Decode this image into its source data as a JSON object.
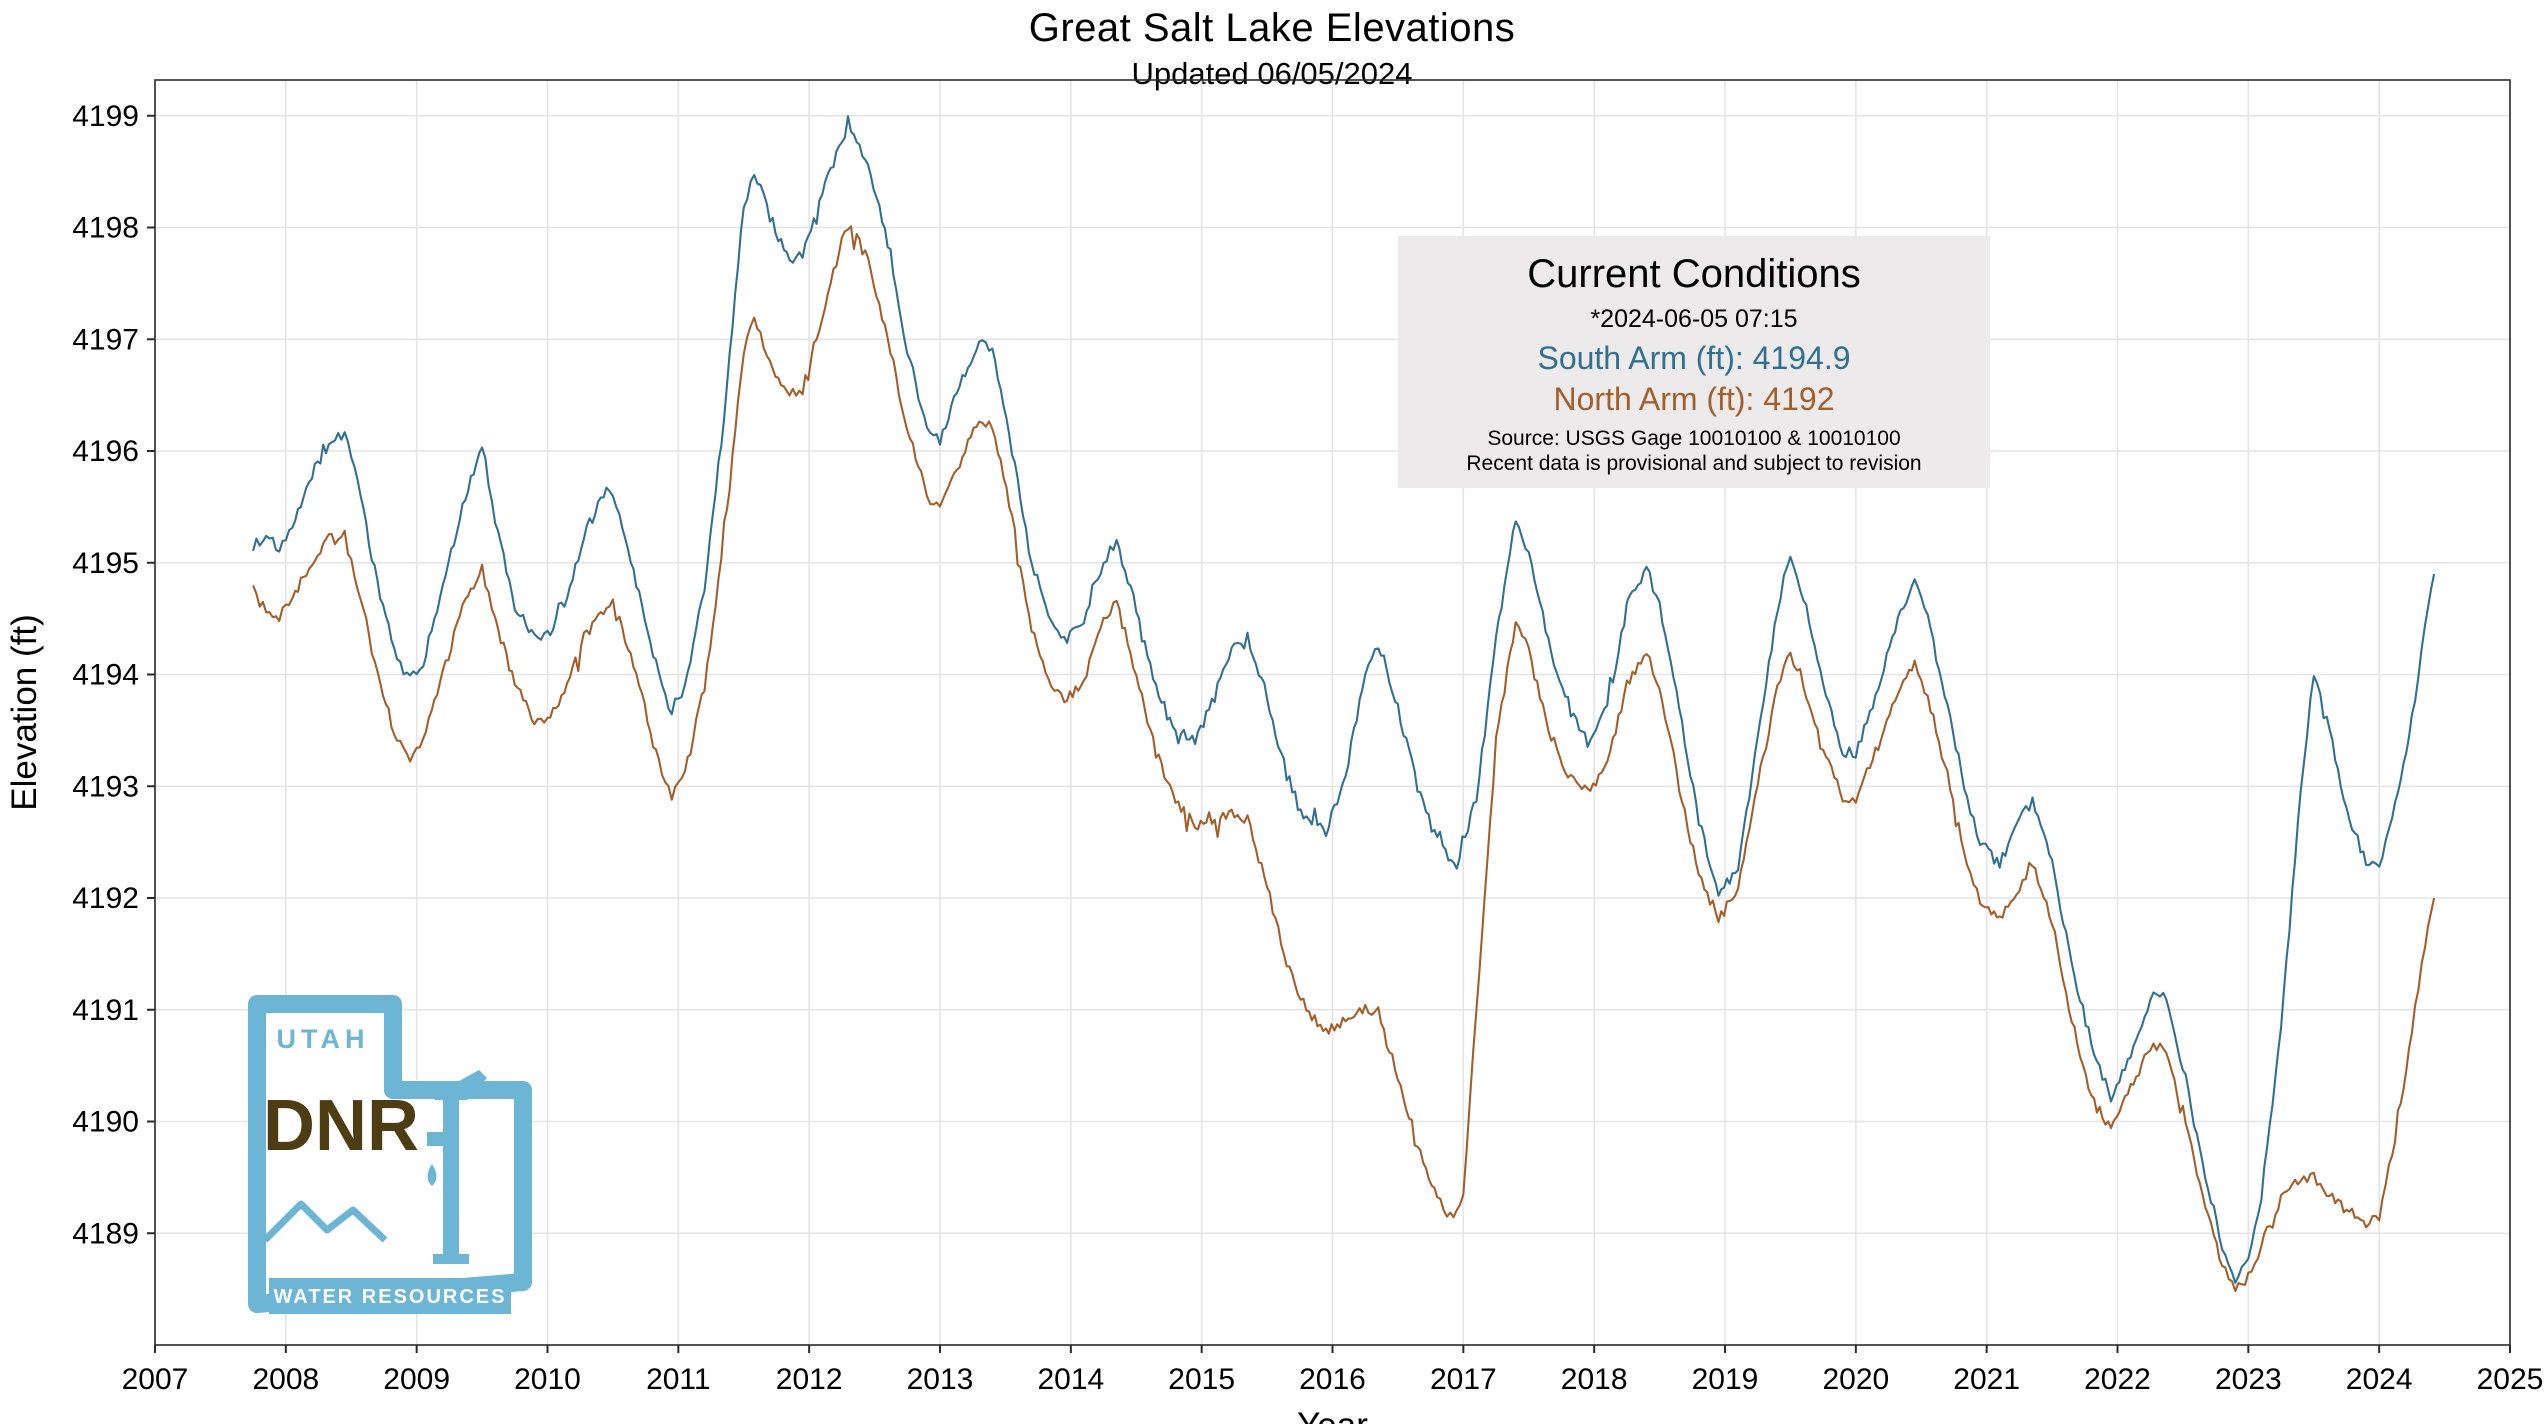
{
  "page": {
    "title": "Great Salt Lake Elevations",
    "subtitle": "Updated 06/05/2024"
  },
  "current_conditions": {
    "title": "Current Conditions",
    "timestamp": "*2024-06-05 07:15",
    "south_arm": "South Arm (ft): 4194.9",
    "north_arm": "North Arm (ft): 4192",
    "source": "Source: USGS Gage 10010100 & 10010100",
    "disclaimer": "Recent data is provisional and subject to revision"
  },
  "logo": {
    "state": "UTAH",
    "agency": "DNR",
    "division": "WATER RESOURCES",
    "accent_color": "#6cb5d5",
    "agency_color": "#4e3d12"
  },
  "chart_data": {
    "type": "line",
    "title": "Great Salt Lake Elevations",
    "subtitle": "Updated 06/05/2024",
    "xlabel": "Year",
    "ylabel": "Elevation (ft)",
    "xlim": [
      2007,
      2025
    ],
    "ylim": [
      4188.0,
      4199.32
    ],
    "x_ticks": [
      2007,
      2008,
      2009,
      2010,
      2011,
      2012,
      2013,
      2014,
      2015,
      2016,
      2017,
      2018,
      2019,
      2020,
      2021,
      2022,
      2023,
      2024,
      2025
    ],
    "y_ticks": [
      4189,
      4190,
      4191,
      4192,
      4193,
      4194,
      4195,
      4196,
      4197,
      4198,
      4199
    ],
    "grid": true,
    "legend_position": "none",
    "series": [
      {
        "name": "South Arm",
        "color": "#31708f",
        "points": [
          [
            2007.75,
            4195.15
          ],
          [
            2007.85,
            4195.25
          ],
          [
            2007.95,
            4195.1
          ],
          [
            2008.05,
            4195.3
          ],
          [
            2008.2,
            4195.8
          ],
          [
            2008.35,
            4196.1
          ],
          [
            2008.45,
            4196.15
          ],
          [
            2008.55,
            4195.7
          ],
          [
            2008.7,
            4194.8
          ],
          [
            2008.85,
            4194.15
          ],
          [
            2008.95,
            4193.95
          ],
          [
            2009.05,
            4194.1
          ],
          [
            2009.2,
            4194.8
          ],
          [
            2009.35,
            4195.5
          ],
          [
            2009.5,
            4196.05
          ],
          [
            2009.6,
            4195.4
          ],
          [
            2009.75,
            4194.6
          ],
          [
            2009.9,
            4194.35
          ],
          [
            2010.0,
            4194.35
          ],
          [
            2010.15,
            4194.7
          ],
          [
            2010.3,
            4195.3
          ],
          [
            2010.45,
            4195.65
          ],
          [
            2010.55,
            4195.45
          ],
          [
            2010.7,
            4194.7
          ],
          [
            2010.85,
            4194.0
          ],
          [
            2010.95,
            4193.65
          ],
          [
            2011.05,
            4193.9
          ],
          [
            2011.2,
            4194.8
          ],
          [
            2011.35,
            4196.3
          ],
          [
            2011.5,
            4198.2
          ],
          [
            2011.58,
            4198.5
          ],
          [
            2011.7,
            4198.1
          ],
          [
            2011.85,
            4197.7
          ],
          [
            2011.95,
            4197.75
          ],
          [
            2012.1,
            4198.3
          ],
          [
            2012.25,
            4198.8
          ],
          [
            2012.32,
            4198.85
          ],
          [
            2012.45,
            4198.55
          ],
          [
            2012.6,
            4197.9
          ],
          [
            2012.75,
            4196.9
          ],
          [
            2012.9,
            4196.2
          ],
          [
            2013.0,
            4196.1
          ],
          [
            2013.15,
            4196.6
          ],
          [
            2013.3,
            4197.0
          ],
          [
            2013.4,
            4196.9
          ],
          [
            2013.55,
            4196.0
          ],
          [
            2013.7,
            4195.0
          ],
          [
            2013.85,
            4194.5
          ],
          [
            2013.95,
            4194.3
          ],
          [
            2014.1,
            4194.5
          ],
          [
            2014.25,
            4195.0
          ],
          [
            2014.35,
            4195.2
          ],
          [
            2014.5,
            4194.6
          ],
          [
            2014.65,
            4193.9
          ],
          [
            2014.8,
            4193.5
          ],
          [
            2014.95,
            4193.4
          ],
          [
            2015.1,
            4193.8
          ],
          [
            2015.25,
            4194.3
          ],
          [
            2015.35,
            4194.35
          ],
          [
            2015.5,
            4193.8
          ],
          [
            2015.65,
            4193.1
          ],
          [
            2015.8,
            4192.7
          ],
          [
            2015.95,
            4192.6
          ],
          [
            2016.1,
            4193.1
          ],
          [
            2016.25,
            4194.0
          ],
          [
            2016.35,
            4194.25
          ],
          [
            2016.5,
            4193.7
          ],
          [
            2016.65,
            4193.0
          ],
          [
            2016.8,
            4192.5
          ],
          [
            2016.95,
            4192.3
          ],
          [
            2017.1,
            4192.9
          ],
          [
            2017.25,
            4194.3
          ],
          [
            2017.4,
            4195.4
          ],
          [
            2017.5,
            4195.1
          ],
          [
            2017.65,
            4194.3
          ],
          [
            2017.8,
            4193.7
          ],
          [
            2017.95,
            4193.4
          ],
          [
            2018.1,
            4193.7
          ],
          [
            2018.25,
            4194.6
          ],
          [
            2018.4,
            4195.0
          ],
          [
            2018.5,
            4194.6
          ],
          [
            2018.65,
            4193.7
          ],
          [
            2018.8,
            4192.7
          ],
          [
            2018.95,
            4192.0
          ],
          [
            2019.1,
            4192.3
          ],
          [
            2019.25,
            4193.4
          ],
          [
            2019.4,
            4194.6
          ],
          [
            2019.5,
            4195.1
          ],
          [
            2019.6,
            4194.7
          ],
          [
            2019.75,
            4193.9
          ],
          [
            2019.9,
            4193.3
          ],
          [
            2020.0,
            4193.3
          ],
          [
            2020.15,
            4193.8
          ],
          [
            2020.3,
            4194.4
          ],
          [
            2020.45,
            4194.85
          ],
          [
            2020.55,
            4194.5
          ],
          [
            2020.7,
            4193.7
          ],
          [
            2020.85,
            4192.9
          ],
          [
            2020.95,
            4192.5
          ],
          [
            2021.1,
            4192.3
          ],
          [
            2021.25,
            4192.7
          ],
          [
            2021.35,
            4192.85
          ],
          [
            2021.5,
            4192.3
          ],
          [
            2021.65,
            4191.4
          ],
          [
            2021.8,
            4190.7
          ],
          [
            2021.95,
            4190.2
          ],
          [
            2022.1,
            4190.6
          ],
          [
            2022.25,
            4191.1
          ],
          [
            2022.35,
            4191.15
          ],
          [
            2022.5,
            4190.5
          ],
          [
            2022.65,
            4189.6
          ],
          [
            2022.8,
            4188.9
          ],
          [
            2022.9,
            4188.6
          ],
          [
            2023.0,
            4188.8
          ],
          [
            2023.1,
            4189.3
          ],
          [
            2023.25,
            4190.8
          ],
          [
            2023.4,
            4193.0
          ],
          [
            2023.5,
            4194.0
          ],
          [
            2023.6,
            4193.6
          ],
          [
            2023.75,
            4192.8
          ],
          [
            2023.9,
            4192.3
          ],
          [
            2024.0,
            4192.3
          ],
          [
            2024.1,
            4192.7
          ],
          [
            2024.25,
            4193.6
          ],
          [
            2024.35,
            4194.4
          ],
          [
            2024.42,
            4194.9
          ]
        ]
      },
      {
        "name": "North Arm",
        "color": "#a35f2b",
        "points": [
          [
            2007.75,
            4194.75
          ],
          [
            2007.85,
            4194.55
          ],
          [
            2007.95,
            4194.5
          ],
          [
            2008.05,
            4194.7
          ],
          [
            2008.2,
            4195.0
          ],
          [
            2008.35,
            4195.25
          ],
          [
            2008.45,
            4195.2
          ],
          [
            2008.55,
            4194.8
          ],
          [
            2008.7,
            4194.0
          ],
          [
            2008.85,
            4193.4
          ],
          [
            2008.95,
            4193.25
          ],
          [
            2009.05,
            4193.4
          ],
          [
            2009.2,
            4194.0
          ],
          [
            2009.35,
            4194.6
          ],
          [
            2009.5,
            4194.95
          ],
          [
            2009.6,
            4194.5
          ],
          [
            2009.75,
            4193.9
          ],
          [
            2009.9,
            4193.6
          ],
          [
            2010.0,
            4193.6
          ],
          [
            2010.15,
            4193.9
          ],
          [
            2010.3,
            4194.4
          ],
          [
            2010.45,
            4194.6
          ],
          [
            2010.55,
            4194.5
          ],
          [
            2010.7,
            4193.9
          ],
          [
            2010.85,
            4193.2
          ],
          [
            2010.95,
            4192.9
          ],
          [
            2011.05,
            4193.1
          ],
          [
            2011.2,
            4193.9
          ],
          [
            2011.35,
            4195.2
          ],
          [
            2011.5,
            4196.9
          ],
          [
            2011.58,
            4197.2
          ],
          [
            2011.7,
            4196.8
          ],
          [
            2011.85,
            4196.5
          ],
          [
            2011.95,
            4196.55
          ],
          [
            2012.1,
            4197.2
          ],
          [
            2012.25,
            4197.9
          ],
          [
            2012.32,
            4198.0
          ],
          [
            2012.45,
            4197.7
          ],
          [
            2012.6,
            4197.0
          ],
          [
            2012.75,
            4196.2
          ],
          [
            2012.9,
            4195.6
          ],
          [
            2013.0,
            4195.5
          ],
          [
            2013.15,
            4195.9
          ],
          [
            2013.3,
            4196.3
          ],
          [
            2013.4,
            4196.2
          ],
          [
            2013.55,
            4195.4
          ],
          [
            2013.7,
            4194.4
          ],
          [
            2013.85,
            4193.9
          ],
          [
            2013.95,
            4193.75
          ],
          [
            2014.1,
            4193.95
          ],
          [
            2014.25,
            4194.5
          ],
          [
            2014.35,
            4194.65
          ],
          [
            2014.5,
            4194.0
          ],
          [
            2014.65,
            4193.3
          ],
          [
            2014.8,
            4192.85
          ],
          [
            2014.95,
            4192.65
          ],
          [
            2015.1,
            4192.7
          ],
          [
            2015.25,
            4192.75
          ],
          [
            2015.35,
            4192.7
          ],
          [
            2015.5,
            4192.1
          ],
          [
            2015.65,
            4191.4
          ],
          [
            2015.8,
            4191.0
          ],
          [
            2015.95,
            4190.8
          ],
          [
            2016.1,
            4190.9
          ],
          [
            2016.25,
            4191.0
          ],
          [
            2016.35,
            4190.95
          ],
          [
            2016.5,
            4190.4
          ],
          [
            2016.65,
            4189.8
          ],
          [
            2016.8,
            4189.3
          ],
          [
            2016.9,
            4189.15
          ],
          [
            2017.0,
            4189.3
          ],
          [
            2017.1,
            4191.0
          ],
          [
            2017.25,
            4193.4
          ],
          [
            2017.4,
            4194.5
          ],
          [
            2017.5,
            4194.2
          ],
          [
            2017.65,
            4193.5
          ],
          [
            2017.8,
            4193.1
          ],
          [
            2017.95,
            4192.95
          ],
          [
            2018.1,
            4193.2
          ],
          [
            2018.25,
            4193.9
          ],
          [
            2018.4,
            4194.2
          ],
          [
            2018.5,
            4193.9
          ],
          [
            2018.65,
            4193.0
          ],
          [
            2018.8,
            4192.2
          ],
          [
            2018.95,
            4191.85
          ],
          [
            2019.1,
            4192.1
          ],
          [
            2019.25,
            4193.0
          ],
          [
            2019.4,
            4193.9
          ],
          [
            2019.5,
            4194.2
          ],
          [
            2019.6,
            4193.9
          ],
          [
            2019.75,
            4193.3
          ],
          [
            2019.9,
            4192.9
          ],
          [
            2020.0,
            4192.9
          ],
          [
            2020.15,
            4193.3
          ],
          [
            2020.3,
            4193.8
          ],
          [
            2020.45,
            4194.1
          ],
          [
            2020.55,
            4193.8
          ],
          [
            2020.7,
            4193.1
          ],
          [
            2020.85,
            4192.3
          ],
          [
            2020.95,
            4191.95
          ],
          [
            2021.1,
            4191.8
          ],
          [
            2021.25,
            4192.1
          ],
          [
            2021.35,
            4192.3
          ],
          [
            2021.5,
            4191.8
          ],
          [
            2021.65,
            4190.9
          ],
          [
            2021.8,
            4190.2
          ],
          [
            2021.95,
            4189.95
          ],
          [
            2022.1,
            4190.3
          ],
          [
            2022.25,
            4190.65
          ],
          [
            2022.35,
            4190.7
          ],
          [
            2022.5,
            4190.1
          ],
          [
            2022.65,
            4189.3
          ],
          [
            2022.8,
            4188.7
          ],
          [
            2022.9,
            4188.5
          ],
          [
            2023.0,
            4188.6
          ],
          [
            2023.1,
            4188.9
          ],
          [
            2023.25,
            4189.3
          ],
          [
            2023.4,
            4189.5
          ],
          [
            2023.5,
            4189.5
          ],
          [
            2023.6,
            4189.35
          ],
          [
            2023.75,
            4189.2
          ],
          [
            2023.9,
            4189.1
          ],
          [
            2024.0,
            4189.2
          ],
          [
            2024.1,
            4189.7
          ],
          [
            2024.25,
            4190.8
          ],
          [
            2024.35,
            4191.6
          ],
          [
            2024.42,
            4192.0
          ]
        ]
      }
    ]
  }
}
